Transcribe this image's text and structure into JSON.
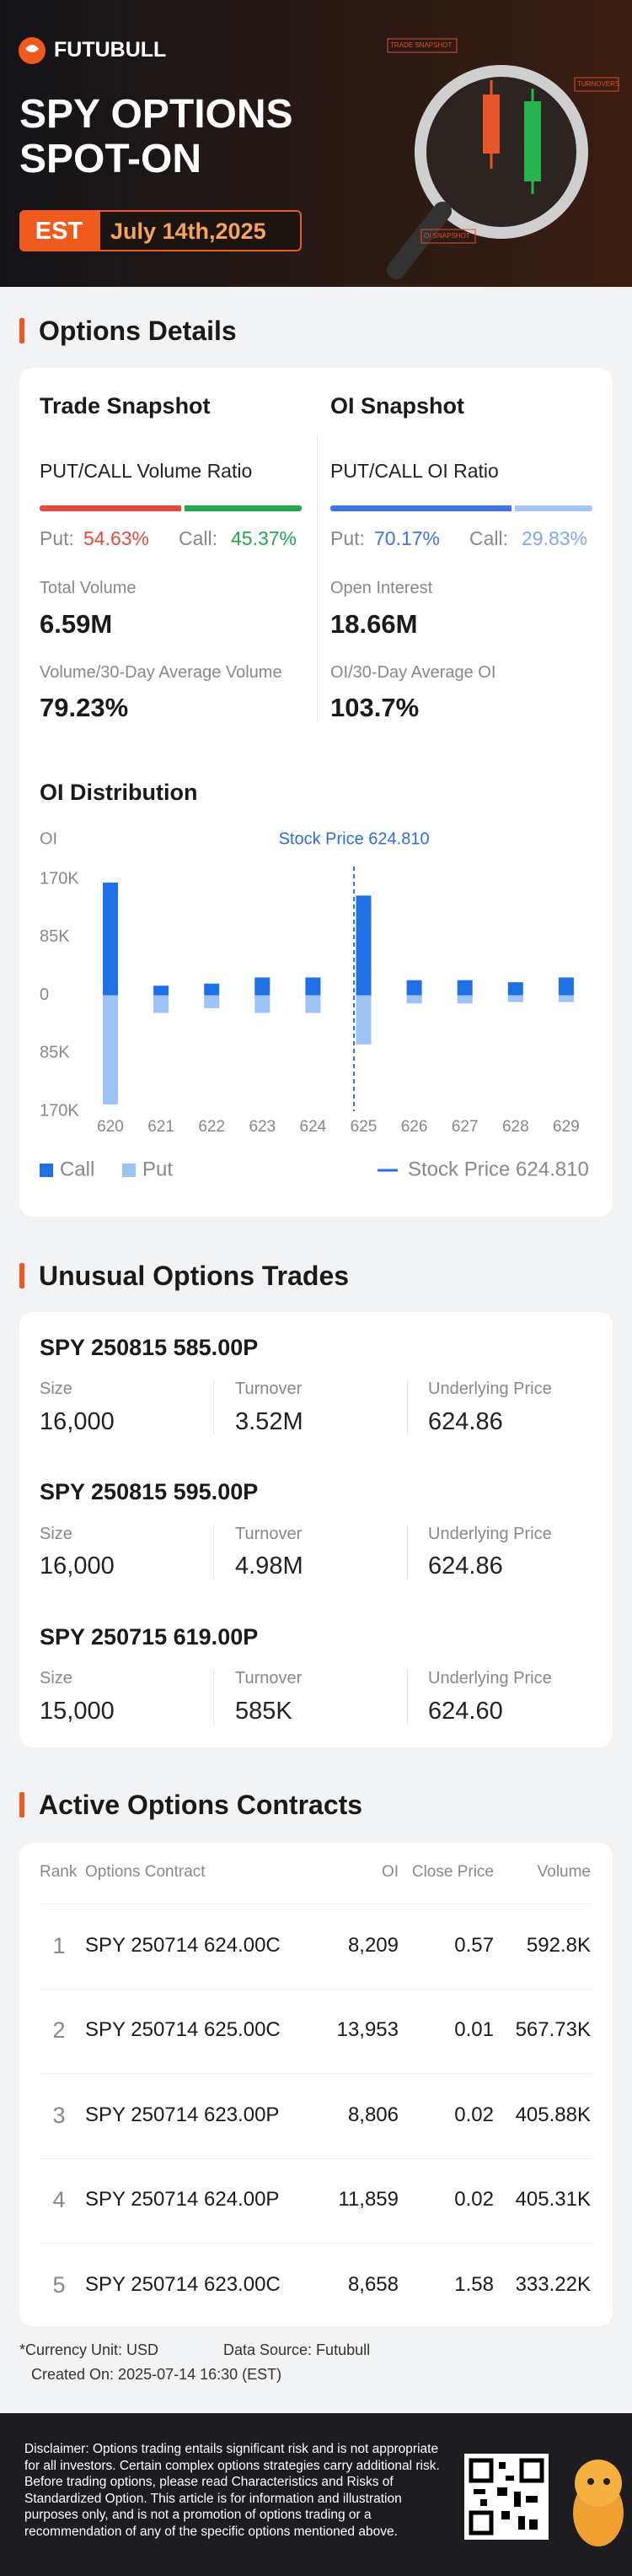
{
  "header": {
    "brand": "FUTUBULL",
    "title_lines": [
      "SPY OPTIONS",
      "SPOT-ON"
    ],
    "timezone": "EST",
    "date": "July 14th,2025",
    "decor_labels": [
      "TRADE SNAPSHOT",
      "TURNOVERS",
      "OI SNAPSHOT"
    ]
  },
  "options_details": {
    "title": "Options Details",
    "snapshots": [
      {
        "title": "Trade Snapshot",
        "ratio_title": "PUT/CALL Volume Ratio",
        "labels": [
          "Put:",
          "Call:"
        ],
        "values": [
          54.63,
          45.37
        ],
        "value_labels": [
          "54.63%",
          "45.37%"
        ],
        "colors": [
          "#e5483d",
          "#22a74c"
        ],
        "metrics": [
          {
            "label": "Total Volume",
            "value": "6.59M"
          },
          {
            "label": "Volume/30-Day Average Volume",
            "value": "79.23%"
          }
        ]
      },
      {
        "title": "OI Snapshot",
        "ratio_title": "PUT/CALL OI Ratio",
        "labels": [
          "Put:",
          "Call:"
        ],
        "values": [
          70.17,
          29.83
        ],
        "value_labels": [
          "70.17%",
          "29.83%"
        ],
        "colors": [
          "#3f73e6",
          "#a9c4f8"
        ],
        "metrics": [
          {
            "label": "Open Interest",
            "value": "18.66M"
          },
          {
            "label": "OI/30-Day Average OI",
            "value": "103.7%"
          }
        ]
      }
    ]
  },
  "chart_data": {
    "type": "bar",
    "title": "OI Distribution",
    "y_label": "OI",
    "categories": [
      "620",
      "621",
      "622",
      "623",
      "624",
      "625",
      "626",
      "627",
      "628",
      "629"
    ],
    "series": [
      {
        "name": "Call",
        "color": "#1f6fe5",
        "values": [
          165000,
          14000,
          17000,
          26000,
          26000,
          146000,
          22000,
          22000,
          19000,
          26000
        ]
      },
      {
        "name": "Put",
        "color": "#9dc3f5",
        "values": [
          -160000,
          -26000,
          -19000,
          -26000,
          -26000,
          -72000,
          -12000,
          -12000,
          -10000,
          -10000
        ]
      }
    ],
    "ylim": [
      -170000,
      170000
    ],
    "yticks": [
      {
        "value": -170000,
        "label": "170K"
      },
      {
        "value": -85000,
        "label": "85K"
      },
      0,
      {
        "value": 85000,
        "label": "85K"
      },
      {
        "value": 170000,
        "label": "170K"
      }
    ],
    "stock_price": {
      "value": 624.81,
      "label": "Stock Price 624.810",
      "color": "#2a6de0"
    },
    "grid": false,
    "legend": "bottom"
  },
  "unusual_trades": {
    "title": "Unusual Options Trades",
    "columns": [
      "Size",
      "Turnover",
      "Underlying Price"
    ],
    "items": [
      {
        "contract": "SPY 250815 585.00P",
        "values": [
          "16,000",
          "3.52M",
          "624.86"
        ]
      },
      {
        "contract": "SPY 250815 595.00P",
        "values": [
          "16,000",
          "4.98M",
          "624.86"
        ]
      },
      {
        "contract": "SPY 250715 619.00P",
        "values": [
          "15,000",
          "585K",
          "624.60"
        ]
      }
    ]
  },
  "active_contracts": {
    "title": "Active Options Contracts",
    "headers": [
      "Rank",
      "Options Contract",
      "OI",
      "Close Price",
      "Volume"
    ],
    "rows": [
      [
        "1",
        "SPY 250714 624.00C",
        "8,209",
        "0.57",
        "592.8K"
      ],
      [
        "2",
        "SPY 250714 625.00C",
        "13,953",
        "0.01",
        "567.73K"
      ],
      [
        "3",
        "SPY 250714 623.00P",
        "8,806",
        "0.02",
        "405.88K"
      ],
      [
        "4",
        "SPY 250714 624.00P",
        "11,859",
        "0.02",
        "405.31K"
      ],
      [
        "5",
        "SPY 250714 623.00C",
        "8,658",
        "1.58",
        "333.22K"
      ]
    ]
  },
  "footer": {
    "currency": "*Currency Unit: USD",
    "source": "Data Source: Futubull",
    "created": "Created On: 2025-07-14 16:30 (EST)",
    "disclaimer": "Disclaimer: Options trading entails significant risk and is not appropriate for all investors. Certain complex options strategies carry additional risk. Before trading options, please read Characteristics and Risks of Standardized Option. This article is for information and illustration purposes only, and is not a promotion of options trading or a recommendation of any of the specific options mentioned above."
  }
}
